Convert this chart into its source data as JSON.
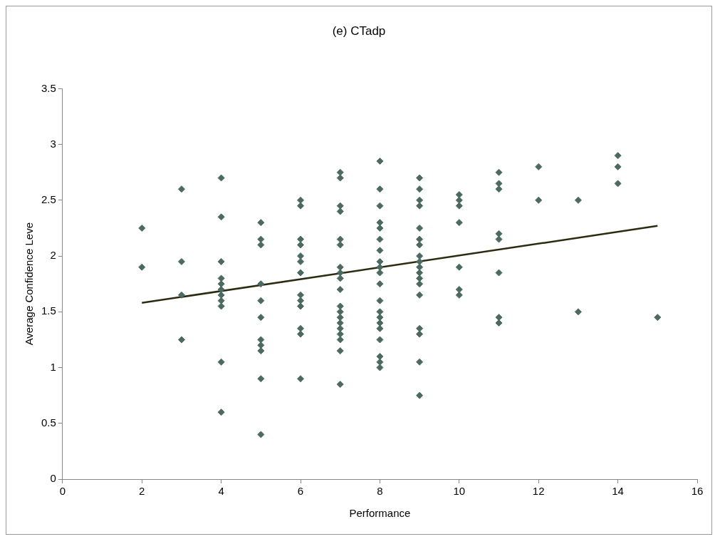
{
  "chart_data": {
    "type": "scatter",
    "title": "(e) CTadp",
    "xlabel": "Performance",
    "ylabel": "Average Confidence Leve",
    "xlim": [
      0,
      16
    ],
    "xticks": [
      0,
      2,
      4,
      6,
      8,
      10,
      12,
      14,
      16
    ],
    "ylim": [
      0,
      3.5
    ],
    "yticks": [
      0,
      0.5,
      1,
      1.5,
      2,
      2.5,
      3,
      3.5
    ],
    "grid": false,
    "legend": false,
    "marker": "diamond",
    "series": [
      {
        "color": "#4d6a62",
        "x": [
          2,
          2,
          3,
          3,
          3,
          3,
          4,
          4,
          4,
          4,
          4,
          4,
          4,
          4,
          4,
          4,
          4,
          5,
          5,
          5,
          5,
          5,
          5,
          5,
          5,
          5,
          5,
          5,
          6,
          6,
          6,
          6,
          6,
          6,
          6,
          6,
          6,
          6,
          6,
          6,
          6,
          7,
          7,
          7,
          7,
          7,
          7,
          7,
          7,
          7,
          7,
          7,
          7,
          7,
          7,
          7,
          7,
          7,
          7,
          7,
          8,
          8,
          8,
          8,
          8,
          8,
          8,
          8,
          8,
          8,
          8,
          8,
          8,
          8,
          8,
          8,
          8,
          8,
          8,
          8,
          9,
          9,
          9,
          9,
          9,
          9,
          9,
          9,
          9,
          9,
          9,
          9,
          9,
          9,
          9,
          9,
          9,
          9,
          10,
          10,
          10,
          10,
          10,
          10,
          10,
          11,
          11,
          11,
          11,
          11,
          11,
          11,
          11,
          12,
          12,
          13,
          13,
          14,
          14,
          14,
          15
        ],
        "values": [
          2.25,
          1.9,
          2.6,
          1.95,
          1.65,
          1.25,
          2.7,
          2.35,
          1.95,
          1.8,
          1.75,
          1.7,
          1.65,
          1.6,
          1.55,
          1.05,
          0.6,
          2.3,
          2.15,
          2.1,
          1.75,
          1.6,
          1.45,
          1.25,
          1.2,
          1.15,
          0.9,
          0.4,
          2.5,
          2.45,
          2.15,
          2.1,
          2,
          1.95,
          1.85,
          1.65,
          1.6,
          1.55,
          1.35,
          1.3,
          0.9,
          2.75,
          2.7,
          2.45,
          2.4,
          2.15,
          2.1,
          1.9,
          1.85,
          1.8,
          1.7,
          1.55,
          1.5,
          1.45,
          1.4,
          1.35,
          1.3,
          1.25,
          1.15,
          0.85,
          2.85,
          2.6,
          2.45,
          2.3,
          2.25,
          2.15,
          2.05,
          1.95,
          1.9,
          1.85,
          1.75,
          1.6,
          1.5,
          1.45,
          1.4,
          1.35,
          1.25,
          1.1,
          1.05,
          1,
          2.7,
          2.6,
          2.5,
          2.45,
          2.25,
          2.15,
          2.1,
          2,
          1.95,
          1.9,
          1.85,
          1.8,
          1.75,
          1.65,
          1.35,
          1.3,
          1.05,
          0.75,
          2.55,
          2.5,
          2.45,
          2.3,
          1.9,
          1.7,
          1.65,
          2.75,
          2.65,
          2.6,
          2.2,
          2.15,
          1.85,
          1.45,
          1.4,
          2.8,
          2.5,
          2.5,
          1.5,
          2.9,
          2.8,
          2.65,
          1.45
        ]
      },
      {
        "type": "line",
        "marker": "none",
        "color": "#2b2b12",
        "x": [
          2,
          15
        ],
        "values": [
          1.58,
          2.27
        ]
      }
    ]
  }
}
